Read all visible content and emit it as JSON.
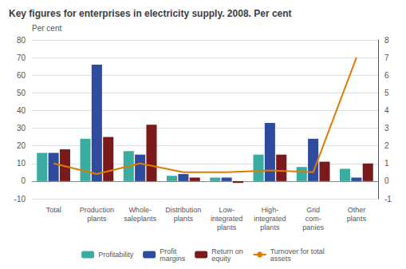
{
  "chart_data": {
    "type": "bar",
    "title": "Key figures for enterprises in electricity supply. 2008. Per cent",
    "ylabel": "Per cent",
    "categories": [
      "Total",
      "Production\nplants",
      "Whole-\nsaleplants",
      "Distribution\nplants",
      "Low-\nintegrated\nplants",
      "High-\nintegrated\nplants",
      "Grid\ncom-\npanies",
      "Other\nplants"
    ],
    "series": [
      {
        "name": "Profitability",
        "color": "#3aada0",
        "values": [
          16,
          24,
          17,
          3,
          2,
          15,
          8,
          7
        ]
      },
      {
        "name": "Profit\nmargins",
        "color": "#2e4b9e",
        "values": [
          16,
          66,
          15,
          4,
          2,
          33,
          24,
          2
        ]
      },
      {
        "name": "Return on\nequity",
        "color": "#7a1a1a",
        "values": [
          18,
          25,
          32,
          2,
          -1,
          15,
          11,
          10
        ]
      },
      {
        "name": "Turnover for total\nassets",
        "type": "line",
        "axis": "y2",
        "color": "#e07b00",
        "values": [
          1.0,
          0.4,
          1.0,
          0.5,
          0.5,
          0.6,
          0.5,
          7.0
        ]
      }
    ],
    "ylim": [
      -10,
      80
    ],
    "yticks": [
      -10,
      0,
      10,
      20,
      30,
      40,
      50,
      60,
      70,
      80
    ],
    "y2lim": [
      -1,
      8
    ],
    "y2ticks": [
      -1,
      0,
      1,
      2,
      3,
      4,
      5,
      6,
      7,
      8
    ],
    "grid": true,
    "legend": "bottom"
  }
}
